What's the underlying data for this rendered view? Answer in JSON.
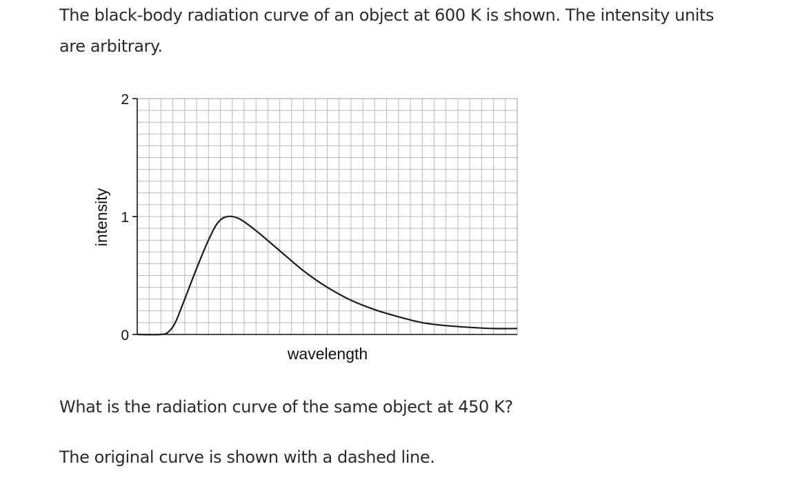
{
  "question": {
    "intro": "The black-body radiation curve of an object at 600 K is shown. The intensity units are arbitrary.",
    "prompt": "What is the radiation curve of the same object at 450 K?",
    "note": "The original curve is shown with a dashed line."
  },
  "chart_data": {
    "type": "line",
    "xlabel": "wavelength",
    "ylabel": "intensity",
    "ylim": [
      0,
      2
    ],
    "yticks": [
      "0",
      "1",
      "2"
    ],
    "grid": true,
    "x_units": "grid squares",
    "xlim": [
      0,
      32
    ],
    "series": [
      {
        "points": [
          [
            0,
            0.0
          ],
          [
            2.0,
            0.0
          ],
          [
            2.6,
            0.02
          ],
          [
            3.2,
            0.1
          ],
          [
            4.0,
            0.3
          ],
          [
            5.0,
            0.56
          ],
          [
            6.0,
            0.8
          ],
          [
            6.8,
            0.95
          ],
          [
            7.6,
            1.0
          ],
          [
            8.6,
            0.98
          ],
          [
            10.0,
            0.88
          ],
          [
            12.0,
            0.71
          ],
          [
            14.0,
            0.54
          ],
          [
            16.0,
            0.4
          ],
          [
            18.0,
            0.29
          ],
          [
            20.0,
            0.21
          ],
          [
            22.0,
            0.15
          ],
          [
            24.0,
            0.1
          ],
          [
            26.0,
            0.075
          ],
          [
            28.0,
            0.06
          ],
          [
            30.0,
            0.05
          ],
          [
            32.0,
            0.05
          ]
        ]
      }
    ]
  }
}
